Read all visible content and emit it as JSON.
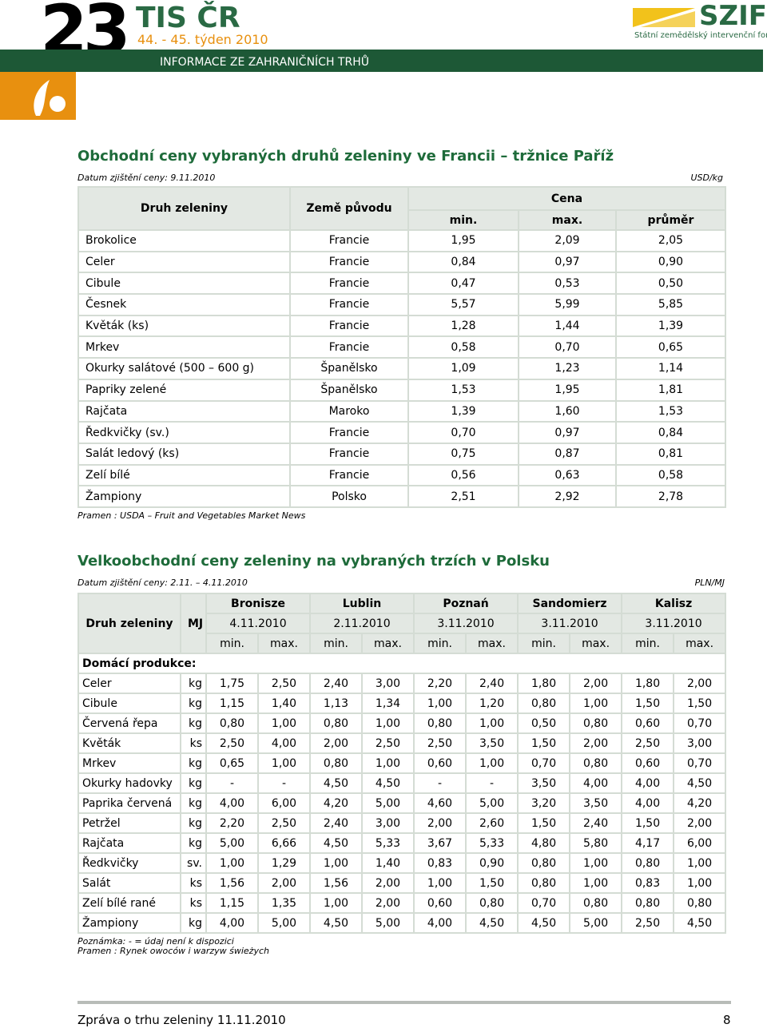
{
  "header": {
    "number": "23",
    "title": "TIS ČR",
    "week": "44. - 45. týden 2010",
    "subtitle": "INFORMACE ZE ZAHRANIČNÍCH TRHŮ",
    "logo": "SZIF",
    "logo_sub": "Státní zemědělský intervenční fond"
  },
  "table1": {
    "title": "Obchodní ceny vybraných druhů zeleniny ve Francii – tržnice Paříž",
    "date": "Datum zjištění ceny: 9.11.2010",
    "unit": "USD/kg",
    "headers": {
      "product": "Druh zeleniny",
      "origin": "Země původu",
      "price": "Cena",
      "min": "min.",
      "max": "max.",
      "avg": "průměr"
    },
    "rows": [
      [
        "Brokolice",
        "Francie",
        "1,95",
        "2,09",
        "2,05"
      ],
      [
        "Celer",
        "Francie",
        "0,84",
        "0,97",
        "0,90"
      ],
      [
        "Cibule",
        "Francie",
        "0,47",
        "0,53",
        "0,50"
      ],
      [
        "Česnek",
        "Francie",
        "5,57",
        "5,99",
        "5,85"
      ],
      [
        "Květák (ks)",
        "Francie",
        "1,28",
        "1,44",
        "1,39"
      ],
      [
        "Mrkev",
        "Francie",
        "0,58",
        "0,70",
        "0,65"
      ],
      [
        "Okurky salátové (500 – 600 g)",
        "Španělsko",
        "1,09",
        "1,23",
        "1,14"
      ],
      [
        "Papriky zelené",
        "Španělsko",
        "1,53",
        "1,95",
        "1,81"
      ],
      [
        "Rajčata",
        "Maroko",
        "1,39",
        "1,60",
        "1,53"
      ],
      [
        "Ředkvičky (sv.)",
        "Francie",
        "0,70",
        "0,97",
        "0,84"
      ],
      [
        "Salát ledový (ks)",
        "Francie",
        "0,75",
        "0,87",
        "0,81"
      ],
      [
        "Zelí bílé",
        "Francie",
        "0,56",
        "0,63",
        "0,58"
      ],
      [
        "Žampiony",
        "Polsko",
        "2,51",
        "2,92",
        "2,78"
      ]
    ],
    "source": "Pramen : USDA – Fruit and Vegetables Market News"
  },
  "table2": {
    "title": "Velkoobchodní ceny zeleniny na vybraných trzích v Polsku",
    "date": "Datum zjištění ceny: 2.11. – 4.11.2010",
    "unit": "PLN/MJ",
    "headers": {
      "product": "Druh zeleniny",
      "mj": "MJ",
      "min": "min.",
      "max": "max."
    },
    "markets": [
      {
        "name": "Bronisze",
        "date": "4.11.2010"
      },
      {
        "name": "Lublin",
        "date": "2.11.2010"
      },
      {
        "name": "Poznań",
        "date": "3.11.2010"
      },
      {
        "name": "Sandomierz",
        "date": "3.11.2010"
      },
      {
        "name": "Kalisz",
        "date": "3.11.2010"
      }
    ],
    "section": "Domácí produkce:",
    "rows": [
      [
        "Celer",
        "kg",
        "1,75",
        "2,50",
        "2,40",
        "3,00",
        "2,20",
        "2,40",
        "1,80",
        "2,00",
        "1,80",
        "2,00"
      ],
      [
        "Cibule",
        "kg",
        "1,15",
        "1,40",
        "1,13",
        "1,34",
        "1,00",
        "1,20",
        "0,80",
        "1,00",
        "1,50",
        "1,50"
      ],
      [
        "Červená řepa",
        "kg",
        "0,80",
        "1,00",
        "0,80",
        "1,00",
        "0,80",
        "1,00",
        "0,50",
        "0,80",
        "0,60",
        "0,70"
      ],
      [
        "Květák",
        "ks",
        "2,50",
        "4,00",
        "2,00",
        "2,50",
        "2,50",
        "3,50",
        "1,50",
        "2,00",
        "2,50",
        "3,00"
      ],
      [
        "Mrkev",
        "kg",
        "0,65",
        "1,00",
        "0,80",
        "1,00",
        "0,60",
        "1,00",
        "0,70",
        "0,80",
        "0,60",
        "0,70"
      ],
      [
        "Okurky hadovky",
        "kg",
        "-",
        "-",
        "4,50",
        "4,50",
        "-",
        "-",
        "3,50",
        "4,00",
        "4,00",
        "4,50"
      ],
      [
        "Paprika červená",
        "kg",
        "4,00",
        "6,00",
        "4,20",
        "5,00",
        "4,60",
        "5,00",
        "3,20",
        "3,50",
        "4,00",
        "4,20"
      ],
      [
        "Petržel",
        "kg",
        "2,20",
        "2,50",
        "2,40",
        "3,00",
        "2,00",
        "2,60",
        "1,50",
        "2,40",
        "1,50",
        "2,00"
      ],
      [
        "Rajčata",
        "kg",
        "5,00",
        "6,66",
        "4,50",
        "5,33",
        "3,67",
        "5,33",
        "4,80",
        "5,80",
        "4,17",
        "6,00"
      ],
      [
        "Ředkvičky",
        "sv.",
        "1,00",
        "1,29",
        "1,00",
        "1,40",
        "0,83",
        "0,90",
        "0,80",
        "1,00",
        "0,80",
        "1,00"
      ],
      [
        "Salát",
        "ks",
        "1,56",
        "2,00",
        "1,56",
        "2,00",
        "1,00",
        "1,50",
        "0,80",
        "1,00",
        "0,83",
        "1,00"
      ],
      [
        "Zelí bílé rané",
        "ks",
        "1,15",
        "1,35",
        "1,00",
        "2,00",
        "0,60",
        "0,80",
        "0,70",
        "0,80",
        "0,80",
        "0,80"
      ],
      [
        "Žampiony",
        "kg",
        "4,00",
        "5,00",
        "4,50",
        "5,00",
        "4,00",
        "4,50",
        "4,50",
        "5,00",
        "2,50",
        "4,50"
      ]
    ],
    "note": "Poznámka: - = údaj není k dispozici",
    "source": "Pramen : Rynek owoców i warzyw świeżych"
  },
  "footer": {
    "text": "Zpráva o trhu zeleniny 11.11.2010",
    "page": "8"
  }
}
